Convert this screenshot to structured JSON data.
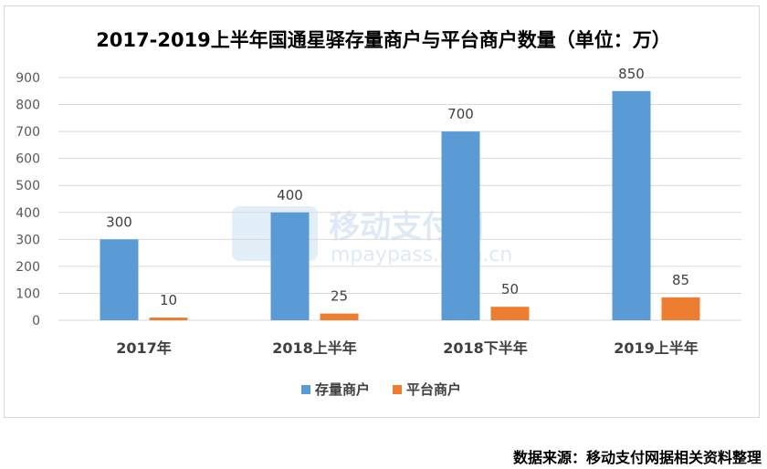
{
  "source_text": "数据来源：移动支付网据相关资料整理",
  "watermark": {
    "logo_text": "移动支付网",
    "url_text": "mpaypass.com.cn"
  },
  "colors": {
    "stock": "#5b9bd5",
    "platform": "#ed7d31",
    "grid": "#d9d9d9",
    "axis_text": "#595959"
  },
  "chart_data": {
    "type": "bar",
    "title": "2017-2019上半年国通星驿存量商户与平台商户数量（单位：万）",
    "categories": [
      "2017年",
      "2018上半年",
      "2018下半年",
      "2019上半年"
    ],
    "series": [
      {
        "name": "存量商户",
        "values": [
          300,
          400,
          700,
          850
        ]
      },
      {
        "name": "平台商户",
        "values": [
          10,
          25,
          50,
          85
        ]
      }
    ],
    "ylim": [
      0,
      900
    ],
    "yticks": [
      0,
      100,
      200,
      300,
      400,
      500,
      600,
      700,
      800,
      900
    ],
    "grid": true,
    "legend": "bottom",
    "data_labels": true
  }
}
